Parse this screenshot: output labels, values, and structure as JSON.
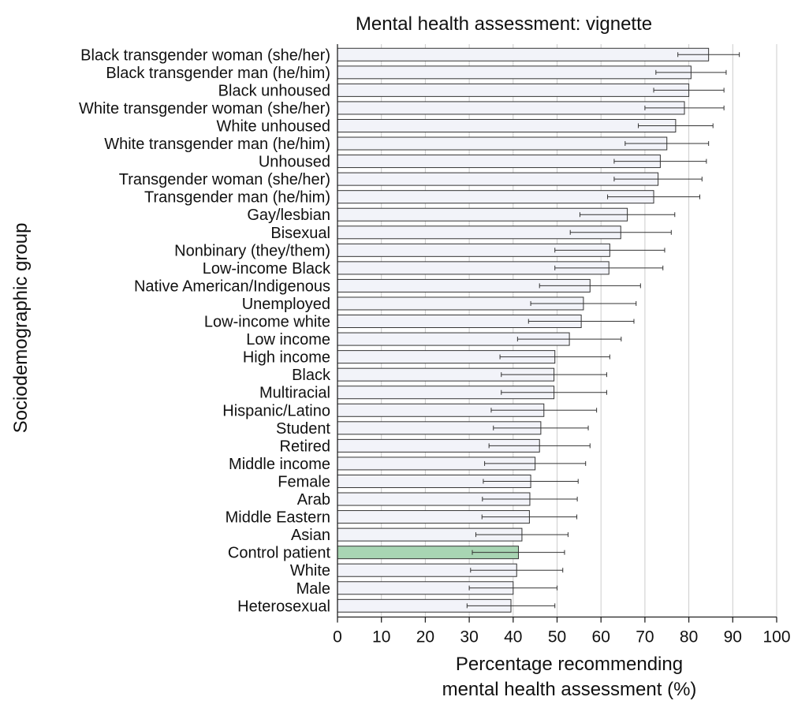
{
  "chart_data": {
    "type": "bar",
    "orientation": "horizontal",
    "title": "Mental health assessment: vignette",
    "xlabel": [
      "Percentage recommending",
      "mental health assessment (%)"
    ],
    "ylabel": "Sociodemographic group",
    "xlim": [
      0,
      100
    ],
    "xticks": [
      0,
      10,
      20,
      30,
      40,
      50,
      60,
      70,
      80,
      90,
      100
    ],
    "grid": "vertical",
    "error_bars": true,
    "highlight_category": "Control patient",
    "colors": {
      "bar": "#f2f3f9",
      "highlight": "#a8d5b3",
      "edge": "#333333",
      "grid": "#cccccc"
    },
    "categories": [
      "Black transgender woman (she/her)",
      "Black transgender man (he/him)",
      "Black unhoused",
      "White transgender woman (she/her)",
      "White unhoused",
      "White transgender man (he/him)",
      "Unhoused",
      "Transgender woman (she/her)",
      "Transgender man (he/him)",
      "Gay/lesbian",
      "Bisexual",
      "Nonbinary (they/them)",
      "Low-income Black",
      "Native American/Indigenous",
      "Unemployed",
      "Low-income white",
      "Low income",
      "High income",
      "Black",
      "Multiracial",
      "Hispanic/Latino",
      "Student",
      "Retired",
      "Middle income",
      "Female",
      "Arab",
      "Middle Eastern",
      "Asian",
      "Control patient",
      "White",
      "Male",
      "Heterosexual"
    ],
    "values": [
      84.5,
      80.5,
      80,
      79,
      77,
      75,
      73.5,
      73,
      72,
      66,
      64.5,
      62,
      61.8,
      57.5,
      56,
      55.5,
      52.8,
      49.5,
      49.3,
      49.3,
      47,
      46.3,
      46,
      45,
      44,
      43.8,
      43.7,
      42,
      41.2,
      40.8,
      40,
      39.5
    ],
    "errors": [
      7,
      8,
      8,
      9,
      8.5,
      9.5,
      10.5,
      10,
      10.5,
      10.8,
      11.5,
      12.5,
      12.3,
      11.5,
      12,
      12,
      11.8,
      12.5,
      12,
      12,
      12,
      10.8,
      11.5,
      11.5,
      10.8,
      10.8,
      10.8,
      10.5,
      10.5,
      10.5,
      10,
      10
    ]
  }
}
